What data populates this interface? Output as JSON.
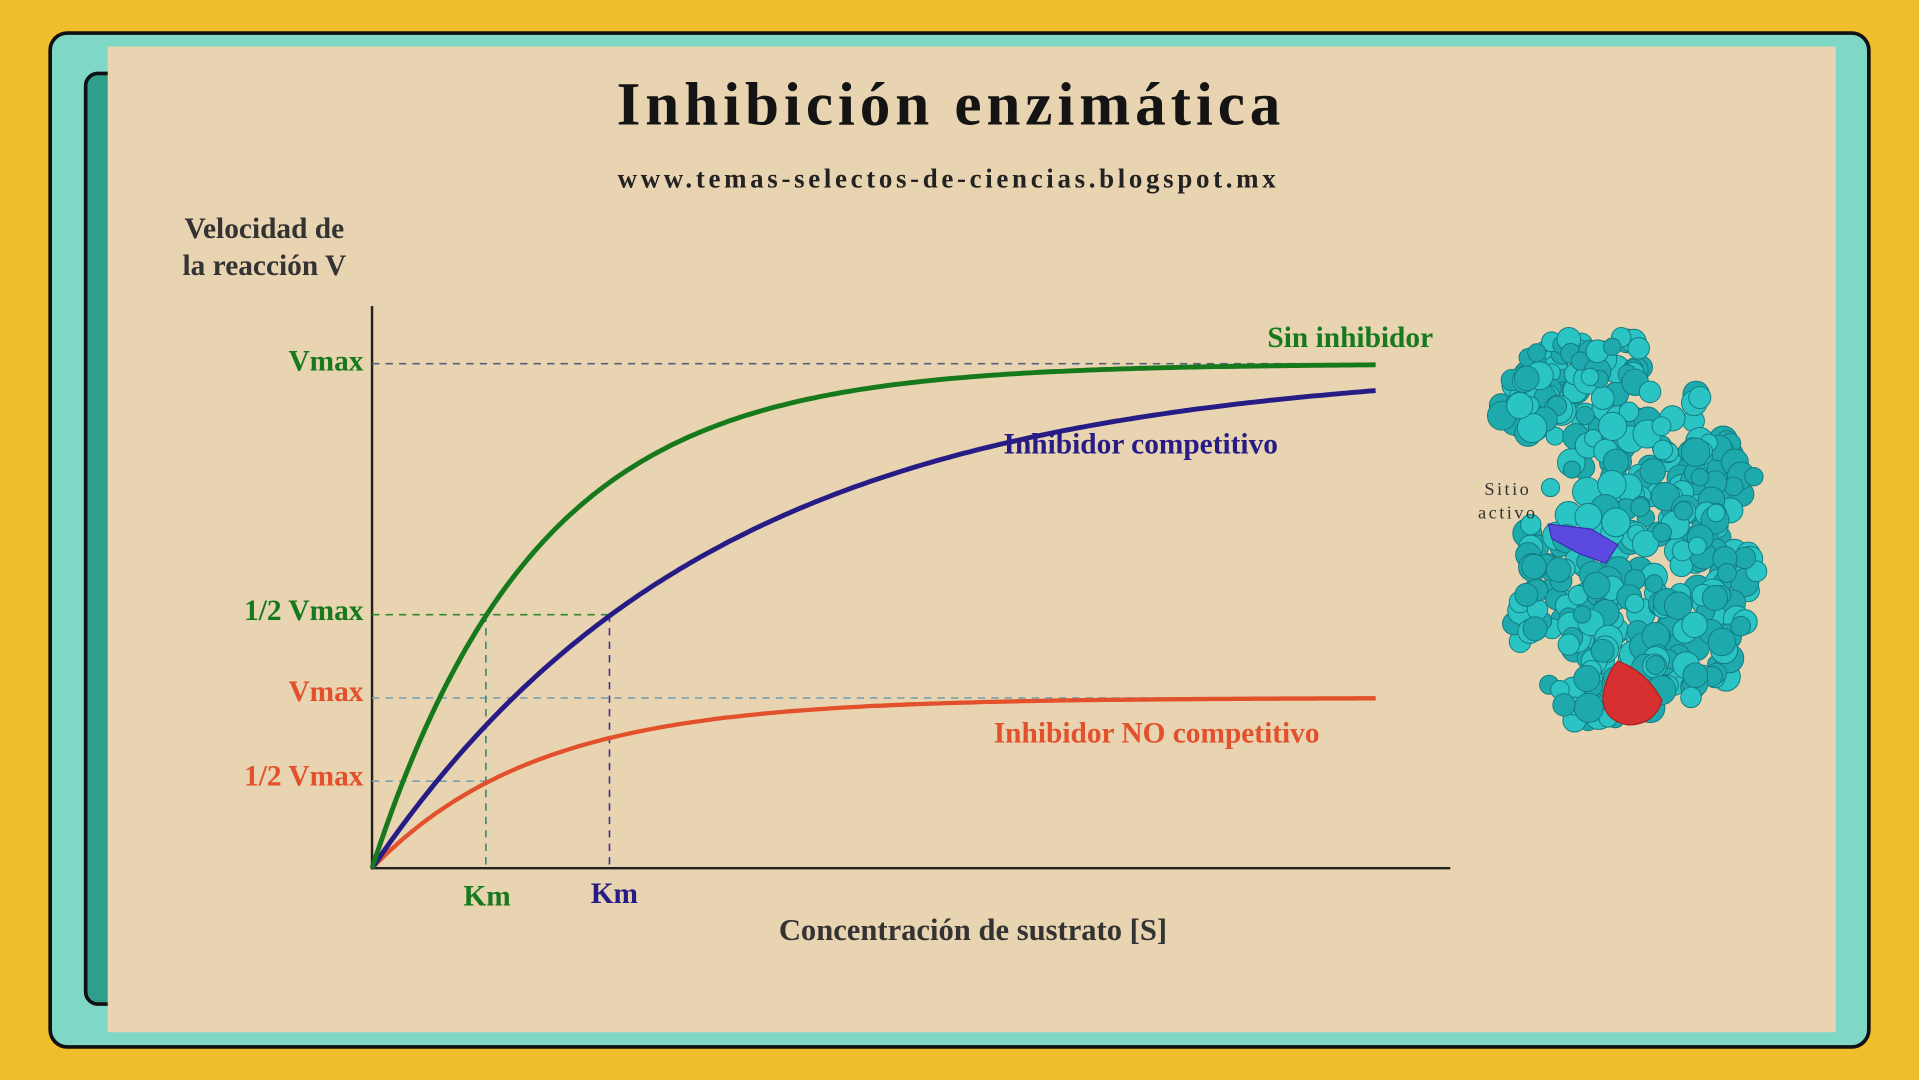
{
  "header": {
    "title": "Inhibición enzimática",
    "url": "www.temas-selectos-de-ciencias.blogspot.mx"
  },
  "axes": {
    "y_label": [
      "Velocidad de",
      "la reacción V"
    ],
    "x_label": "Concentración de sustrato [S]",
    "y_ticks": [
      "Vmax",
      "1/2 Vmax",
      "Vmax",
      "1/2 Vmax"
    ],
    "x_ticks": [
      "Km",
      "Km"
    ]
  },
  "curves": [
    "Sin inhibidor",
    "Inhibidor competitivo",
    "Inhibidor NO competitivo"
  ],
  "protein": {
    "label": [
      "Sitio",
      "activo"
    ]
  }
}
